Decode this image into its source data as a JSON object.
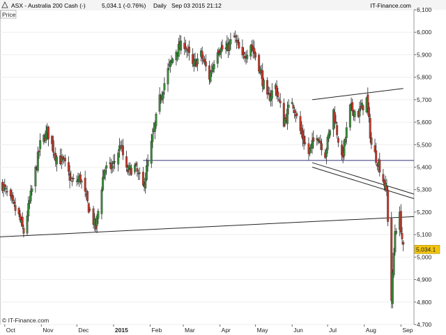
{
  "header": {
    "title": "ASX - Australia 200 Cash (-)",
    "quote": "5,034.1 (-0.76%)",
    "interval": "Daily",
    "datetime": "Sep 03 2015 21:12",
    "brand": "IT-Finance.com",
    "panel_label": "Price",
    "watermark": "© IT-Finance.com"
  },
  "colors": {
    "up": "#3a8a3a",
    "down": "#c0392b",
    "wick": "#222222",
    "level_line": "#33337a",
    "trend_line": "#222222",
    "last_price_bg": "#f1c40f"
  },
  "chart_data": {
    "type": "candlestick",
    "ylim": [
      4700,
      6100
    ],
    "y_ticks": [
      "4,700",
      "4,800",
      "4,900",
      "5,000",
      "5,100",
      "5,200",
      "5,300",
      "5,400",
      "5,500",
      "5,600",
      "5,700",
      "5,800",
      "5,900",
      "6,000",
      "6,100"
    ],
    "y_tick_values": [
      4700,
      4800,
      4900,
      5000,
      5100,
      5200,
      5300,
      5400,
      5500,
      5600,
      5700,
      5800,
      5900,
      6000,
      6100
    ],
    "x_labels": [
      {
        "label": "Oct",
        "date": "2014-10-01"
      },
      {
        "label": "Nov",
        "date": "2014-11-01"
      },
      {
        "label": "Dec",
        "date": "2014-12-01"
      },
      {
        "label": "2015",
        "date": "2015-01-01",
        "bold": true
      },
      {
        "label": "Feb",
        "date": "2015-02-01"
      },
      {
        "label": "Mar",
        "date": "2015-03-01"
      },
      {
        "label": "Apr",
        "date": "2015-04-01"
      },
      {
        "label": "May",
        "date": "2015-05-01"
      },
      {
        "label": "Jun",
        "date": "2015-06-01"
      },
      {
        "label": "Jul",
        "date": "2015-07-01"
      },
      {
        "label": "Aug",
        "date": "2015-08-01"
      },
      {
        "label": "Sep",
        "date": "2015-09-01"
      }
    ],
    "x_range": [
      "2014-09-27",
      "2015-09-12"
    ],
    "last_price": {
      "value": 5034.1,
      "label": "5,034.1"
    },
    "close_path": [
      [
        "2014-09-29",
        5320
      ],
      [
        "2014-10-06",
        5250
      ],
      [
        "2014-10-13",
        5180
      ],
      [
        "2014-10-17",
        5110
      ],
      [
        "2014-10-24",
        5300
      ],
      [
        "2014-10-31",
        5500
      ],
      [
        "2014-11-06",
        5560
      ],
      [
        "2014-11-13",
        5450
      ],
      [
        "2014-11-20",
        5420
      ],
      [
        "2014-11-27",
        5330
      ],
      [
        "2014-12-04",
        5350
      ],
      [
        "2014-12-11",
        5220
      ],
      [
        "2014-12-17",
        5130
      ],
      [
        "2014-12-24",
        5390
      ],
      [
        "2014-12-31",
        5400
      ],
      [
        "2015-01-07",
        5500
      ],
      [
        "2015-01-12",
        5380
      ],
      [
        "2015-01-19",
        5400
      ],
      [
        "2015-01-26",
        5310
      ],
      [
        "2015-02-02",
        5500
      ],
      [
        "2015-02-09",
        5700
      ],
      [
        "2015-02-16",
        5830
      ],
      [
        "2015-02-23",
        5920
      ],
      [
        "2015-03-02",
        5950
      ],
      [
        "2015-03-09",
        5850
      ],
      [
        "2015-03-16",
        5900
      ],
      [
        "2015-03-23",
        5800
      ],
      [
        "2015-03-30",
        5930
      ],
      [
        "2015-04-06",
        5920
      ],
      [
        "2015-04-13",
        5980
      ],
      [
        "2015-04-20",
        5880
      ],
      [
        "2015-04-27",
        5950
      ],
      [
        "2015-05-04",
        5850
      ],
      [
        "2015-05-11",
        5700
      ],
      [
        "2015-05-18",
        5760
      ],
      [
        "2015-05-25",
        5600
      ],
      [
        "2015-06-01",
        5700
      ],
      [
        "2015-06-08",
        5560
      ],
      [
        "2015-06-15",
        5460
      ],
      [
        "2015-06-22",
        5550
      ],
      [
        "2015-06-29",
        5460
      ],
      [
        "2015-07-06",
        5650
      ],
      [
        "2015-07-13",
        5430
      ],
      [
        "2015-07-20",
        5660
      ],
      [
        "2015-07-27",
        5640
      ],
      [
        "2015-08-03",
        5700
      ],
      [
        "2015-08-07",
        5500
      ],
      [
        "2015-08-14",
        5400
      ],
      [
        "2015-08-20",
        5290
      ],
      [
        "2015-08-24",
        4810
      ],
      [
        "2015-08-27",
        5120
      ],
      [
        "2015-08-31",
        5180
      ],
      [
        "2015-09-03",
        5034
      ]
    ],
    "lines": [
      {
        "name": "horizontal-level",
        "points": [
          [
            "2015-01-26",
            5430
          ],
          [
            "2015-09-12",
            5430
          ]
        ]
      },
      {
        "name": "long-trendline",
        "points": [
          [
            "2014-09-27",
            5090
          ],
          [
            "2015-09-12",
            5180
          ]
        ]
      },
      {
        "name": "channel-upper",
        "points": [
          [
            "2015-06-18",
            5700
          ],
          [
            "2015-09-03",
            5750
          ]
        ]
      },
      {
        "name": "channel-lower-1",
        "points": [
          [
            "2015-06-18",
            5420
          ],
          [
            "2015-09-12",
            5280
          ]
        ]
      },
      {
        "name": "channel-lower-2",
        "points": [
          [
            "2015-06-18",
            5400
          ],
          [
            "2015-09-12",
            5260
          ]
        ]
      }
    ]
  }
}
